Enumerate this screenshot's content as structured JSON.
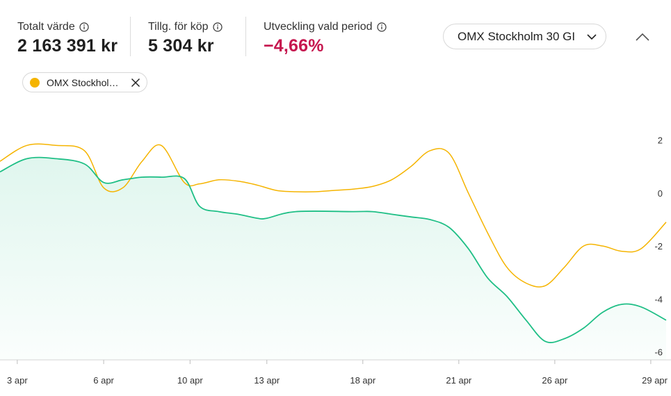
{
  "stats": {
    "total_value": {
      "label": "Totalt värde",
      "value": "2 163 391 kr"
    },
    "available": {
      "label": "Tillg. för köp",
      "value": "5 304 kr"
    },
    "development": {
      "label": "Utveckling vald period",
      "value": "−4,66%"
    }
  },
  "comparison_select": {
    "selected": "OMX Stockholm 30 GI"
  },
  "legend_chip": {
    "label": "OMX Stockhol…",
    "color": "#f5b400"
  },
  "colors": {
    "portfolio": "#1fbf86",
    "index": "#f5b400",
    "negative": "#c6174f"
  },
  "chart_data": {
    "type": "line",
    "y_axis_position": "right",
    "ylim": [
      -6.3,
      2.7
    ],
    "yticks": [
      2,
      0,
      -2,
      -4,
      -6
    ],
    "ytick_labels": [
      "2",
      "0",
      "-2",
      "-4",
      "-6"
    ],
    "x_ticks": [
      {
        "label": "3 apr",
        "x": 1.5
      },
      {
        "label": "6 apr",
        "x": 6
      },
      {
        "label": "10 apr",
        "x": 10.5
      },
      {
        "label": "13 apr",
        "x": 14.5
      },
      {
        "label": "18 apr",
        "x": 19.5
      },
      {
        "label": "21 apr",
        "x": 24.5
      },
      {
        "label": "26 apr",
        "x": 29.5
      },
      {
        "label": "29 apr",
        "x": 34.5
      }
    ],
    "xlim": [
      0.6,
      35.3
    ],
    "series": [
      {
        "key": "portfolio",
        "area": true,
        "x": [
          0.6,
          2,
          3.5,
          5,
          6,
          7,
          8,
          9,
          10.2,
          11,
          12,
          13,
          14,
          14.5,
          16,
          19,
          20,
          21,
          22,
          23,
          24,
          25,
          26,
          27,
          28,
          29,
          30,
          31,
          32,
          33,
          34,
          35.3
        ],
        "y": [
          0.8,
          1.3,
          1.3,
          1.1,
          0.4,
          0.5,
          0.6,
          0.6,
          0.55,
          -0.5,
          -0.7,
          -0.8,
          -0.95,
          -0.95,
          -0.7,
          -0.7,
          -0.7,
          -0.8,
          -0.9,
          -1.0,
          -1.3,
          -2.1,
          -3.2,
          -3.9,
          -4.8,
          -5.6,
          -5.5,
          -5.1,
          -4.5,
          -4.2,
          -4.3,
          -4.8
        ]
      },
      {
        "key": "index",
        "name": "OMX Stockhol…",
        "area": false,
        "x": [
          0.6,
          2,
          3.5,
          5,
          6,
          7,
          8,
          9,
          10.2,
          11,
          12,
          13,
          14,
          15,
          16,
          17,
          18,
          19,
          20,
          21,
          22,
          23,
          24,
          25,
          26,
          27,
          28,
          29,
          30,
          31,
          32,
          33,
          34,
          35.3
        ],
        "y": [
          1.2,
          1.8,
          1.8,
          1.6,
          0.2,
          0.2,
          1.2,
          1.8,
          0.4,
          0.35,
          0.5,
          0.45,
          0.3,
          0.1,
          0.05,
          0.05,
          0.1,
          0.15,
          0.25,
          0.5,
          1.0,
          1.6,
          1.5,
          0.0,
          -1.5,
          -2.8,
          -3.4,
          -3.5,
          -2.8,
          -2.0,
          -2.0,
          -2.2,
          -2.1,
          -1.1
        ]
      }
    ]
  }
}
